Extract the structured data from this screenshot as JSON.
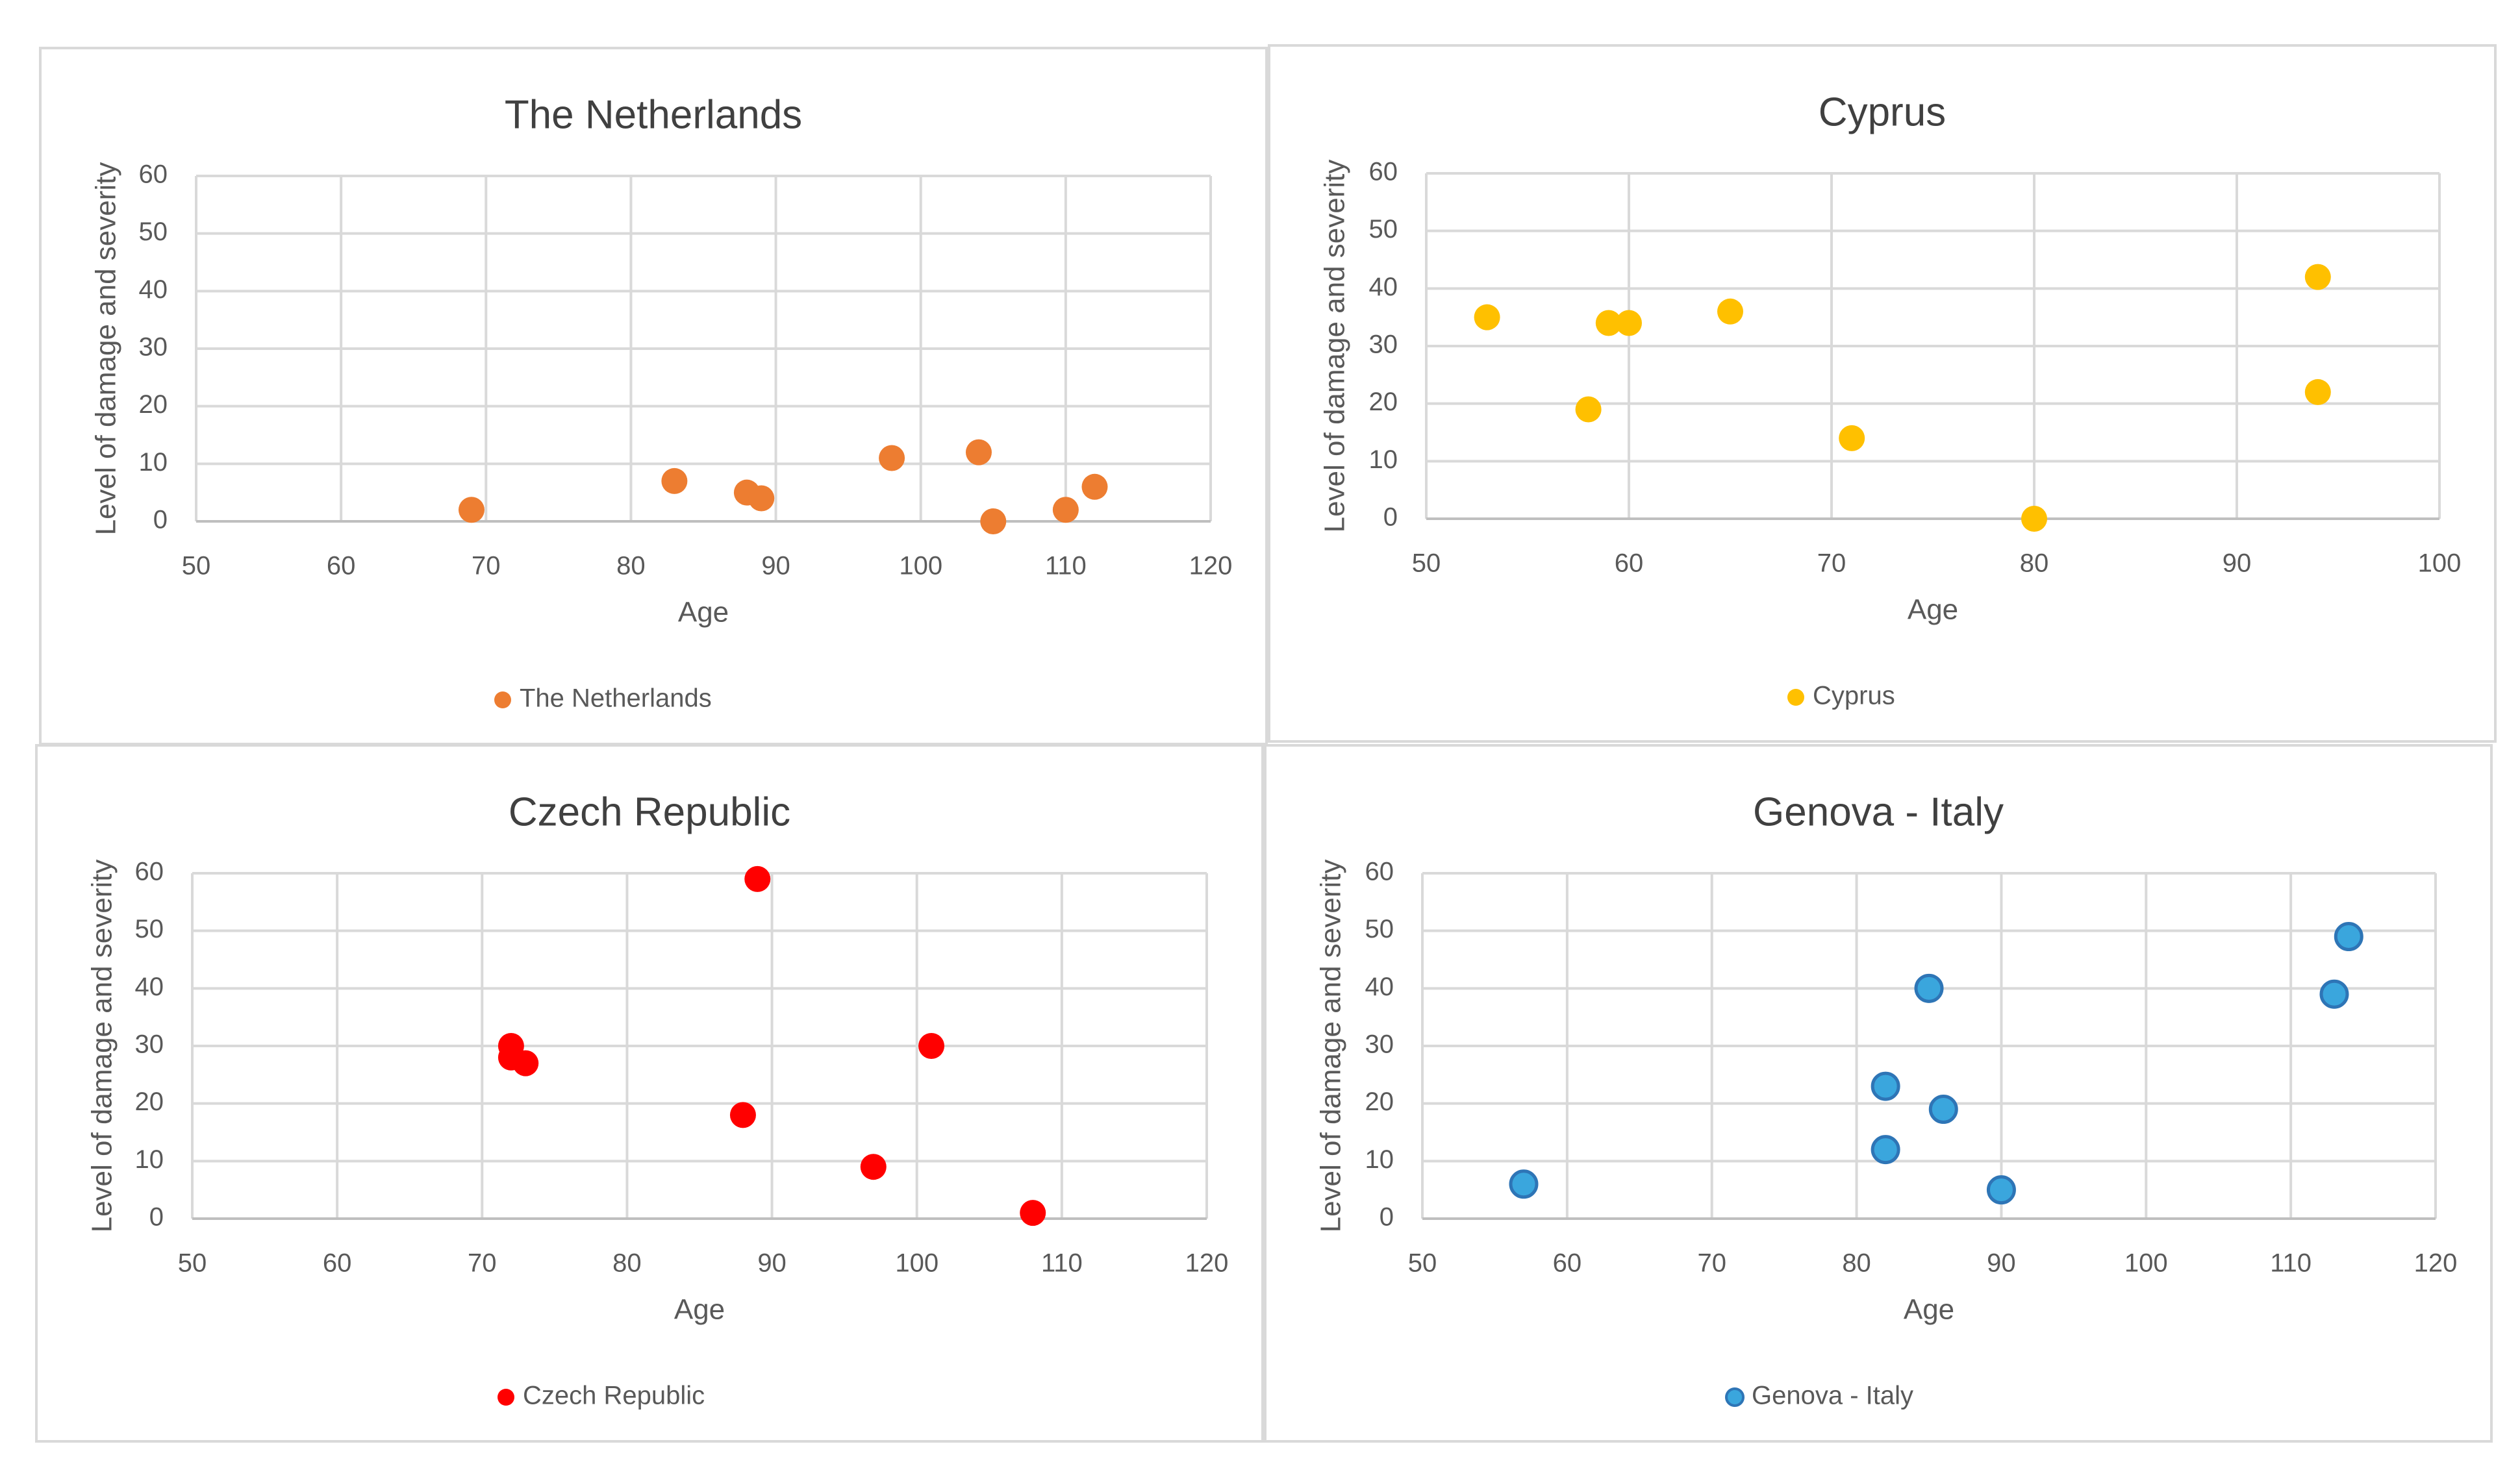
{
  "chart_data": [
    {
      "type": "scatter",
      "title": "The Netherlands",
      "xlabel": "Age",
      "ylabel": "Level of damage and severity",
      "xlim": [
        50,
        120
      ],
      "ylim": [
        0,
        60
      ],
      "xticks": [
        50,
        60,
        70,
        80,
        90,
        100,
        110,
        120
      ],
      "yticks": [
        0,
        10,
        20,
        30,
        40,
        50,
        60
      ],
      "grid": true,
      "legend_position": "bottom",
      "series": [
        {
          "name": "The Netherlands",
          "color": "#ED7D31",
          "points": [
            [
              69,
              2
            ],
            [
              83,
              7
            ],
            [
              88,
              5
            ],
            [
              89,
              4
            ],
            [
              98,
              11
            ],
            [
              104,
              12
            ],
            [
              105,
              0
            ],
            [
              110,
              2
            ],
            [
              112,
              6
            ]
          ]
        }
      ]
    },
    {
      "type": "scatter",
      "title": "Cyprus",
      "xlabel": "Age",
      "ylabel": "Level of damage and severity",
      "xlim": [
        50,
        100
      ],
      "ylim": [
        0,
        60
      ],
      "xticks": [
        50,
        60,
        70,
        80,
        90,
        100
      ],
      "yticks": [
        0,
        10,
        20,
        30,
        40,
        50,
        60
      ],
      "grid": true,
      "legend_position": "bottom",
      "series": [
        {
          "name": "Cyprus",
          "color": "#FFC000",
          "points": [
            [
              53,
              35
            ],
            [
              58,
              19
            ],
            [
              59,
              34
            ],
            [
              60,
              34
            ],
            [
              65,
              36
            ],
            [
              71,
              14
            ],
            [
              80,
              0
            ],
            [
              94,
              42
            ],
            [
              94,
              22
            ]
          ]
        }
      ]
    },
    {
      "type": "scatter",
      "title": "Czech Republic",
      "xlabel": "Age",
      "ylabel": "Level of damage and severity",
      "xlim": [
        50,
        120
      ],
      "ylim": [
        0,
        60
      ],
      "xticks": [
        50,
        60,
        70,
        80,
        90,
        100,
        110,
        120
      ],
      "yticks": [
        0,
        10,
        20,
        30,
        40,
        50,
        60
      ],
      "grid": true,
      "legend_position": "bottom",
      "series": [
        {
          "name": "Czech Republic",
          "color": "#FF0000",
          "points": [
            [
              72,
              30
            ],
            [
              72,
              28
            ],
            [
              73,
              27
            ],
            [
              88,
              18
            ],
            [
              89,
              59
            ],
            [
              97,
              9
            ],
            [
              101,
              30
            ],
            [
              108,
              1
            ]
          ]
        }
      ]
    },
    {
      "type": "scatter",
      "title": "Genova - Italy",
      "xlabel": "Age",
      "ylabel": "Level of damage and severity",
      "xlim": [
        50,
        120
      ],
      "ylim": [
        0,
        60
      ],
      "xticks": [
        50,
        60,
        70,
        80,
        90,
        100,
        110,
        120
      ],
      "yticks": [
        0,
        10,
        20,
        30,
        40,
        50,
        60
      ],
      "grid": true,
      "legend_position": "bottom",
      "series": [
        {
          "name": "Genova - Italy",
          "color": "#3AA6DD",
          "outline": "#2E75B6",
          "points": [
            [
              57,
              6
            ],
            [
              82,
              23
            ],
            [
              82,
              12
            ],
            [
              85,
              40
            ],
            [
              86,
              19
            ],
            [
              90,
              5
            ],
            [
              113,
              39
            ],
            [
              114,
              49
            ]
          ]
        }
      ]
    }
  ]
}
